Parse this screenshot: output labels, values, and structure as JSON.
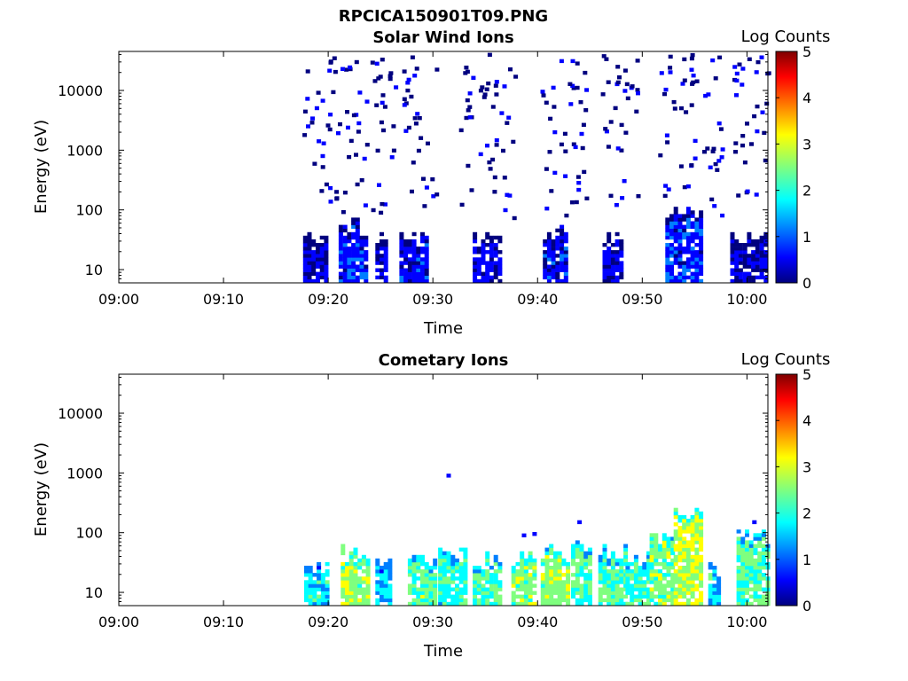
{
  "figure": {
    "title": "RPCICA150901T09.PNG",
    "colormap": [
      "#00007f",
      "#0000ff",
      "#007fff",
      "#00ffff",
      "#7fff7f",
      "#ffff00",
      "#ff7f00",
      "#ff0000",
      "#7f0000"
    ]
  },
  "chart_data": [
    {
      "type": "heatmap",
      "title": "Solar Wind Ions",
      "xlabel": "Time",
      "ylabel": "Energy (eV)",
      "colorbar_label": "Log Counts",
      "xlim": [
        "09:00",
        "10:02"
      ],
      "ylim": [
        6,
        45000
      ],
      "yscale": "log",
      "clim": [
        0,
        5
      ],
      "x_ticks": [
        "09:00",
        "09:10",
        "09:20",
        "09:30",
        "09:40",
        "09:50",
        "10:00"
      ],
      "y_ticks": [
        "10",
        "100",
        "1000",
        "10000"
      ],
      "colorbar_ticks": [
        "0",
        "1",
        "2",
        "3",
        "4",
        "5"
      ],
      "bursts": [
        {
          "t0": 17.6,
          "t1": 19.8,
          "emax": 35,
          "level": 0.4
        },
        {
          "t0": 21.0,
          "t1": 23.6,
          "emax": 60,
          "level": 0.7
        },
        {
          "t0": 24.5,
          "t1": 25.6,
          "emax": 35,
          "level": 0.4
        },
        {
          "t0": 26.8,
          "t1": 29.4,
          "emax": 35,
          "level": 0.6
        },
        {
          "t0": 33.8,
          "t1": 36.4,
          "emax": 35,
          "level": 0.5
        },
        {
          "t0": 40.5,
          "t1": 42.7,
          "emax": 45,
          "level": 0.6
        },
        {
          "t0": 46.2,
          "t1": 48.0,
          "emax": 35,
          "level": 0.4
        },
        {
          "t0": 52.2,
          "t1": 55.5,
          "emax": 90,
          "level": 0.7
        },
        {
          "t0": 58.4,
          "t1": 61.8,
          "emax": 35,
          "level": 0.4
        }
      ],
      "scatter_bands": [
        [
          17.5,
          26.5
        ],
        [
          27.0,
          30.2
        ],
        [
          32.5,
          37.8
        ],
        [
          40.0,
          44.5
        ],
        [
          46.0,
          49.5
        ],
        [
          51.5,
          57.5
        ],
        [
          58.5,
          62.0
        ]
      ],
      "scatter_energy_range": [
        70,
        40000
      ]
    },
    {
      "type": "heatmap",
      "title": "Cometary Ions",
      "xlabel": "Time",
      "ylabel": "Energy (eV)",
      "colorbar_label": "Log Counts",
      "xlim": [
        "09:00",
        "10:02"
      ],
      "ylim": [
        6,
        45000
      ],
      "yscale": "log",
      "clim": [
        0,
        5
      ],
      "x_ticks": [
        "09:00",
        "09:10",
        "09:20",
        "09:30",
        "09:40",
        "09:50",
        "10:00"
      ],
      "y_ticks": [
        "10",
        "100",
        "1000",
        "10000"
      ],
      "colorbar_ticks": [
        "0",
        "1",
        "2",
        "3",
        "4",
        "5"
      ],
      "bursts": [
        {
          "t0": 17.7,
          "t1": 20.0,
          "emax": 27,
          "level": 1.8
        },
        {
          "t0": 21.2,
          "t1": 23.9,
          "emax": 55,
          "level": 2.6
        },
        {
          "t0": 24.5,
          "t1": 25.8,
          "emax": 30,
          "level": 1.7
        },
        {
          "t0": 27.6,
          "t1": 30.2,
          "emax": 37,
          "level": 2.4
        },
        {
          "t0": 30.5,
          "t1": 33.0,
          "emax": 42,
          "level": 2.0
        },
        {
          "t0": 33.8,
          "t1": 36.3,
          "emax": 37,
          "level": 2.3
        },
        {
          "t0": 37.5,
          "t1": 39.6,
          "emax": 38,
          "level": 2.5
        },
        {
          "t0": 40.3,
          "t1": 42.8,
          "emax": 50,
          "level": 2.6
        },
        {
          "t0": 43.2,
          "t1": 45.0,
          "emax": 60,
          "level": 2.2
        },
        {
          "t0": 45.8,
          "t1": 48.2,
          "emax": 55,
          "level": 2.3
        },
        {
          "t0": 48.4,
          "t1": 50.6,
          "emax": 45,
          "level": 2.1
        },
        {
          "t0": 50.7,
          "t1": 52.8,
          "emax": 85,
          "level": 2.5
        },
        {
          "t0": 53.0,
          "t1": 55.6,
          "emax": 230,
          "level": 2.8
        },
        {
          "t0": 56.3,
          "t1": 57.4,
          "emax": 25,
          "level": 1.8
        },
        {
          "t0": 59.0,
          "t1": 61.8,
          "emax": 90,
          "level": 2.3
        }
      ],
      "isolated_points": [
        {
          "t": 31.3,
          "e": 900,
          "level": 0.5
        },
        {
          "t": 38.5,
          "e": 90,
          "level": 0.5
        },
        {
          "t": 39.5,
          "e": 95,
          "level": 0.5
        },
        {
          "t": 43.8,
          "e": 150,
          "level": 0.5
        },
        {
          "t": 60.5,
          "e": 150,
          "level": 0.6
        }
      ]
    }
  ]
}
